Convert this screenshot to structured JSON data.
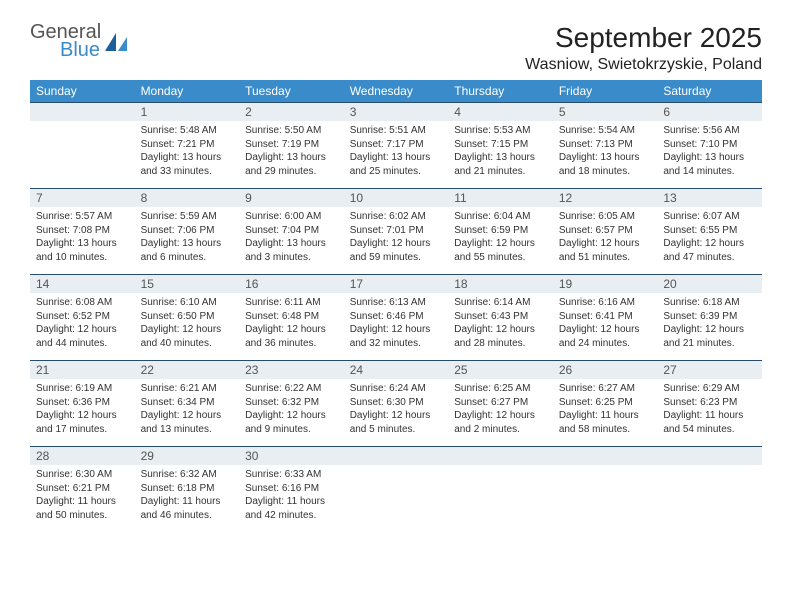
{
  "brand": {
    "general": "General",
    "blue": "Blue"
  },
  "month_title": "September 2025",
  "location": "Wasniow, Swietokrzyskie, Poland",
  "colors": {
    "header_bg": "#3a8bc9",
    "header_text": "#ffffff",
    "daynum_bg": "#e9eef2",
    "rule": "#264b6b",
    "body_text": "#333333"
  },
  "day_headers": [
    "Sunday",
    "Monday",
    "Tuesday",
    "Wednesday",
    "Thursday",
    "Friday",
    "Saturday"
  ],
  "weeks": [
    [
      {
        "n": null
      },
      {
        "n": "1",
        "sr": "Sunrise: 5:48 AM",
        "ss": "Sunset: 7:21 PM",
        "dl": "Daylight: 13 hours and 33 minutes."
      },
      {
        "n": "2",
        "sr": "Sunrise: 5:50 AM",
        "ss": "Sunset: 7:19 PM",
        "dl": "Daylight: 13 hours and 29 minutes."
      },
      {
        "n": "3",
        "sr": "Sunrise: 5:51 AM",
        "ss": "Sunset: 7:17 PM",
        "dl": "Daylight: 13 hours and 25 minutes."
      },
      {
        "n": "4",
        "sr": "Sunrise: 5:53 AM",
        "ss": "Sunset: 7:15 PM",
        "dl": "Daylight: 13 hours and 21 minutes."
      },
      {
        "n": "5",
        "sr": "Sunrise: 5:54 AM",
        "ss": "Sunset: 7:13 PM",
        "dl": "Daylight: 13 hours and 18 minutes."
      },
      {
        "n": "6",
        "sr": "Sunrise: 5:56 AM",
        "ss": "Sunset: 7:10 PM",
        "dl": "Daylight: 13 hours and 14 minutes."
      }
    ],
    [
      {
        "n": "7",
        "sr": "Sunrise: 5:57 AM",
        "ss": "Sunset: 7:08 PM",
        "dl": "Daylight: 13 hours and 10 minutes."
      },
      {
        "n": "8",
        "sr": "Sunrise: 5:59 AM",
        "ss": "Sunset: 7:06 PM",
        "dl": "Daylight: 13 hours and 6 minutes."
      },
      {
        "n": "9",
        "sr": "Sunrise: 6:00 AM",
        "ss": "Sunset: 7:04 PM",
        "dl": "Daylight: 13 hours and 3 minutes."
      },
      {
        "n": "10",
        "sr": "Sunrise: 6:02 AM",
        "ss": "Sunset: 7:01 PM",
        "dl": "Daylight: 12 hours and 59 minutes."
      },
      {
        "n": "11",
        "sr": "Sunrise: 6:04 AM",
        "ss": "Sunset: 6:59 PM",
        "dl": "Daylight: 12 hours and 55 minutes."
      },
      {
        "n": "12",
        "sr": "Sunrise: 6:05 AM",
        "ss": "Sunset: 6:57 PM",
        "dl": "Daylight: 12 hours and 51 minutes."
      },
      {
        "n": "13",
        "sr": "Sunrise: 6:07 AM",
        "ss": "Sunset: 6:55 PM",
        "dl": "Daylight: 12 hours and 47 minutes."
      }
    ],
    [
      {
        "n": "14",
        "sr": "Sunrise: 6:08 AM",
        "ss": "Sunset: 6:52 PM",
        "dl": "Daylight: 12 hours and 44 minutes."
      },
      {
        "n": "15",
        "sr": "Sunrise: 6:10 AM",
        "ss": "Sunset: 6:50 PM",
        "dl": "Daylight: 12 hours and 40 minutes."
      },
      {
        "n": "16",
        "sr": "Sunrise: 6:11 AM",
        "ss": "Sunset: 6:48 PM",
        "dl": "Daylight: 12 hours and 36 minutes."
      },
      {
        "n": "17",
        "sr": "Sunrise: 6:13 AM",
        "ss": "Sunset: 6:46 PM",
        "dl": "Daylight: 12 hours and 32 minutes."
      },
      {
        "n": "18",
        "sr": "Sunrise: 6:14 AM",
        "ss": "Sunset: 6:43 PM",
        "dl": "Daylight: 12 hours and 28 minutes."
      },
      {
        "n": "19",
        "sr": "Sunrise: 6:16 AM",
        "ss": "Sunset: 6:41 PM",
        "dl": "Daylight: 12 hours and 24 minutes."
      },
      {
        "n": "20",
        "sr": "Sunrise: 6:18 AM",
        "ss": "Sunset: 6:39 PM",
        "dl": "Daylight: 12 hours and 21 minutes."
      }
    ],
    [
      {
        "n": "21",
        "sr": "Sunrise: 6:19 AM",
        "ss": "Sunset: 6:36 PM",
        "dl": "Daylight: 12 hours and 17 minutes."
      },
      {
        "n": "22",
        "sr": "Sunrise: 6:21 AM",
        "ss": "Sunset: 6:34 PM",
        "dl": "Daylight: 12 hours and 13 minutes."
      },
      {
        "n": "23",
        "sr": "Sunrise: 6:22 AM",
        "ss": "Sunset: 6:32 PM",
        "dl": "Daylight: 12 hours and 9 minutes."
      },
      {
        "n": "24",
        "sr": "Sunrise: 6:24 AM",
        "ss": "Sunset: 6:30 PM",
        "dl": "Daylight: 12 hours and 5 minutes."
      },
      {
        "n": "25",
        "sr": "Sunrise: 6:25 AM",
        "ss": "Sunset: 6:27 PM",
        "dl": "Daylight: 12 hours and 2 minutes."
      },
      {
        "n": "26",
        "sr": "Sunrise: 6:27 AM",
        "ss": "Sunset: 6:25 PM",
        "dl": "Daylight: 11 hours and 58 minutes."
      },
      {
        "n": "27",
        "sr": "Sunrise: 6:29 AM",
        "ss": "Sunset: 6:23 PM",
        "dl": "Daylight: 11 hours and 54 minutes."
      }
    ],
    [
      {
        "n": "28",
        "sr": "Sunrise: 6:30 AM",
        "ss": "Sunset: 6:21 PM",
        "dl": "Daylight: 11 hours and 50 minutes."
      },
      {
        "n": "29",
        "sr": "Sunrise: 6:32 AM",
        "ss": "Sunset: 6:18 PM",
        "dl": "Daylight: 11 hours and 46 minutes."
      },
      {
        "n": "30",
        "sr": "Sunrise: 6:33 AM",
        "ss": "Sunset: 6:16 PM",
        "dl": "Daylight: 11 hours and 42 minutes."
      },
      {
        "n": null
      },
      {
        "n": null
      },
      {
        "n": null
      },
      {
        "n": null
      }
    ]
  ]
}
